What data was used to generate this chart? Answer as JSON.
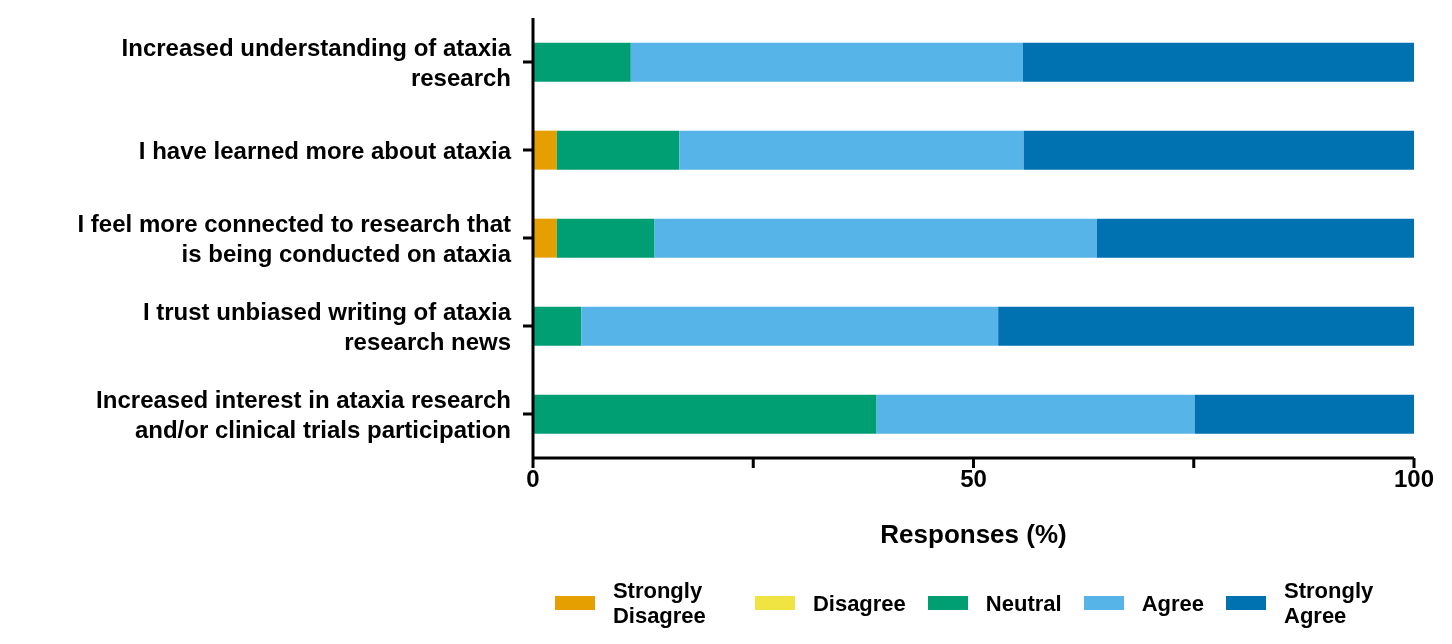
{
  "chart_data": {
    "type": "bar",
    "orientation": "horizontal",
    "stacked": true,
    "xlabel": "Responses (%)",
    "categories": [
      "Increased understanding of ataxia research",
      "I have learned more about ataxia",
      "I feel more connected to research that is being conducted on ataxia",
      "I trust unbiased writing of ataxia research news",
      "Increased interest in ataxia research and/or clinical trials participation"
    ],
    "series": [
      {
        "name": "Strongly Disagree",
        "color": "#e69f00",
        "values": [
          0,
          2.7,
          2.7,
          0,
          0
        ]
      },
      {
        "name": "Disagree",
        "color": "#f0e442",
        "values": [
          0,
          0,
          0,
          0,
          0
        ]
      },
      {
        "name": "Neutral",
        "color": "#009e73",
        "values": [
          11.1,
          13.9,
          11.1,
          5.5,
          39.0
        ]
      },
      {
        "name": "Agree",
        "color": "#56b4e9",
        "values": [
          44.5,
          39.1,
          50.2,
          47.3,
          36.1
        ]
      },
      {
        "name": "Strongly Agree",
        "color": "#0072b2",
        "values": [
          44.4,
          44.3,
          36.0,
          47.2,
          24.9
        ]
      }
    ],
    "xlim": [
      0,
      100
    ],
    "xticks": [
      0,
      {
        "value": 25,
        "label": null
      },
      50,
      {
        "value": 75,
        "label": null
      },
      100
    ],
    "grid": false,
    "legend": "bottom"
  }
}
